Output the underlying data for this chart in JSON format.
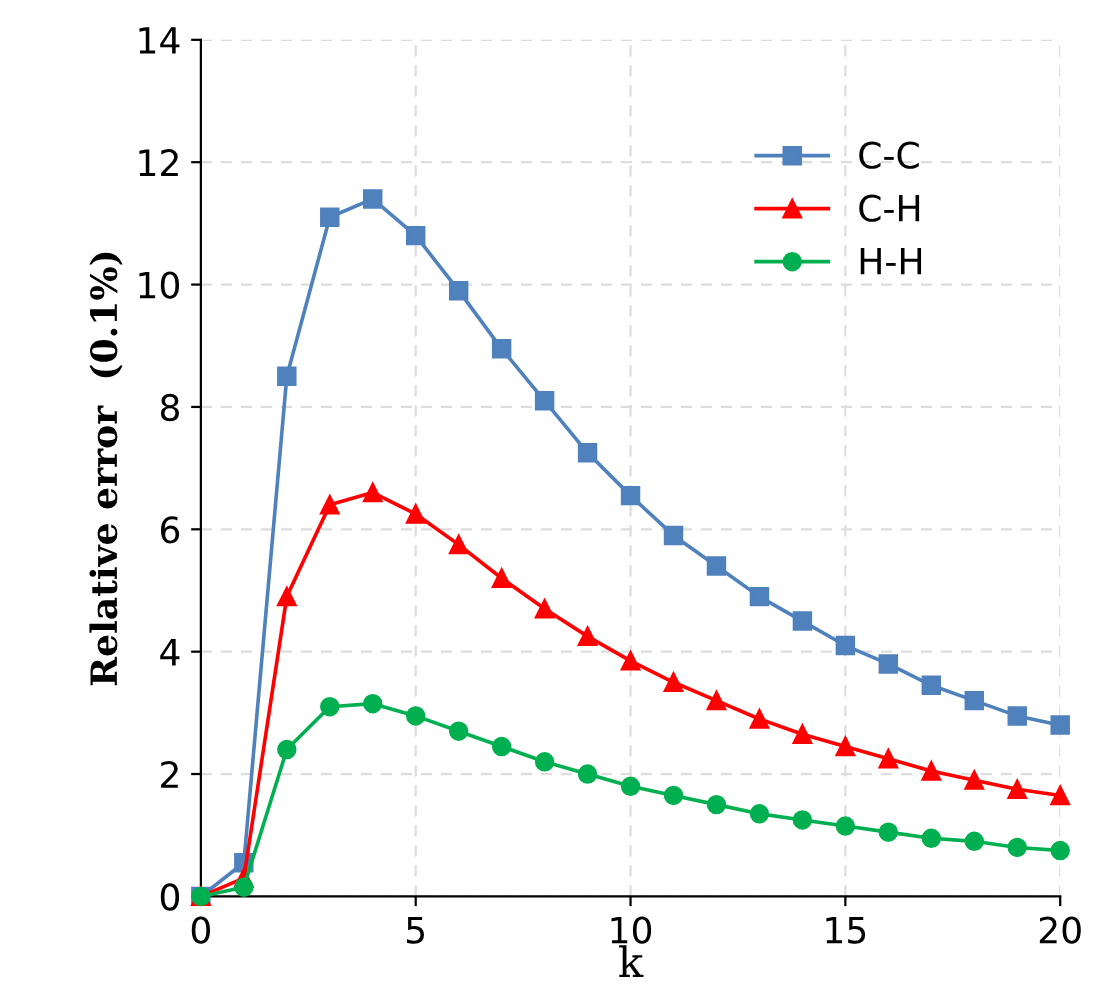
{
  "chart_data": {
    "type": "line",
    "xlabel": "k",
    "ylabel": "Relative error  (0.1%)",
    "x": [
      0,
      1,
      2,
      3,
      4,
      5,
      6,
      7,
      8,
      9,
      10,
      11,
      12,
      13,
      14,
      15,
      16,
      17,
      18,
      19,
      20
    ],
    "series": [
      {
        "name": "C-C",
        "color": "#4f81bd",
        "marker": "square",
        "values": [
          0,
          0.55,
          8.5,
          11.1,
          11.4,
          10.8,
          9.9,
          8.95,
          8.1,
          7.25,
          6.55,
          5.9,
          5.4,
          4.9,
          4.5,
          4.1,
          3.8,
          3.45,
          3.2,
          2.95,
          2.8
        ]
      },
      {
        "name": "C-H",
        "color": "#ff0000",
        "marker": "triangle",
        "values": [
          0,
          0.3,
          4.9,
          6.4,
          6.6,
          6.25,
          5.75,
          5.2,
          4.7,
          4.25,
          3.85,
          3.5,
          3.2,
          2.9,
          2.65,
          2.45,
          2.25,
          2.05,
          1.9,
          1.75,
          1.65
        ]
      },
      {
        "name": "H-H",
        "color": "#00b050",
        "marker": "circle",
        "values": [
          0,
          0.15,
          2.4,
          3.1,
          3.15,
          2.95,
          2.7,
          2.45,
          2.2,
          2.0,
          1.8,
          1.65,
          1.5,
          1.35,
          1.25,
          1.15,
          1.05,
          0.95,
          0.9,
          0.8,
          0.75
        ]
      }
    ],
    "xlim": [
      0,
      20
    ],
    "xticks": [
      0,
      5,
      10,
      15,
      20
    ],
    "ylim": [
      0,
      14
    ],
    "yticks": [
      0,
      2,
      4,
      6,
      8,
      10,
      12,
      14
    ],
    "grid": true,
    "legend": "top right",
    "line_style": "solid"
  }
}
